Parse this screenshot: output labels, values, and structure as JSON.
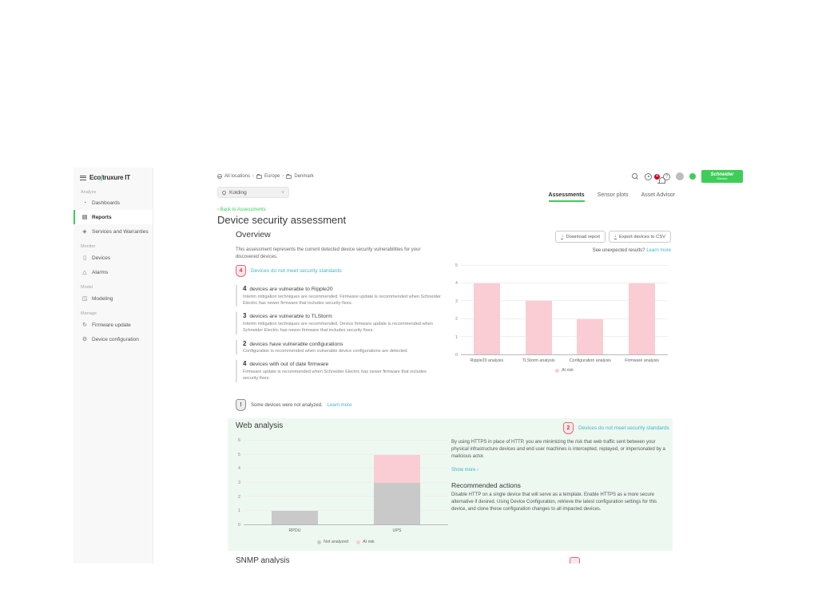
{
  "app_title": "EcoStruxure IT",
  "sidebar": {
    "logo_prefix": "Eco",
    "logo_glyph": "∫",
    "logo_suffix": "truxure IT",
    "sections": [
      {
        "label": "Analyze",
        "items": [
          {
            "label": "Dashboards",
            "icon": "dashboards-icon",
            "glyph": "◔",
            "active": false
          },
          {
            "label": "Reports",
            "icon": "reports-icon",
            "glyph": "▤",
            "active": true
          },
          {
            "label": "Services and Warranties",
            "icon": "services-warranties-icon",
            "glyph": "◈",
            "active": false
          }
        ]
      },
      {
        "label": "Monitor",
        "items": [
          {
            "label": "Devices",
            "icon": "devices-icon",
            "glyph": "▯",
            "active": false
          },
          {
            "label": "Alarms",
            "icon": "alarms-icon",
            "glyph": "△",
            "active": false
          }
        ]
      },
      {
        "label": "Model",
        "items": [
          {
            "label": "Modeling",
            "icon": "modeling-icon",
            "glyph": "◫",
            "active": false
          }
        ]
      },
      {
        "label": "Manage",
        "items": [
          {
            "label": "Firmware update",
            "icon": "firmware-update-icon",
            "glyph": "↻",
            "active": false
          },
          {
            "label": "Device configuration",
            "icon": "device-configuration-icon",
            "glyph": "⚙",
            "active": false
          }
        ]
      }
    ]
  },
  "topbar": {
    "breadcrumb": [
      "All locations",
      "Europe",
      "Denmark"
    ],
    "location_selector": "Kolding",
    "notification_badge": "4",
    "brand_line1": "Schneider",
    "brand_line2": "Electric"
  },
  "tabs": [
    {
      "label": "Assessments",
      "active": true
    },
    {
      "label": "Sensor plots",
      "active": false
    },
    {
      "label": "Asset Advisor",
      "active": false
    }
  ],
  "back_link": "‹ Back to Assessments",
  "page_title": "Device security assessment",
  "overview": {
    "heading": "Overview",
    "description": "This assessment represents the current detected device security vulnerabilities for your discovered devices.",
    "buttons": {
      "download": "Download report",
      "export": "Export devices to CSV"
    },
    "unexpected_text": "See unexpected results?",
    "unexpected_link": "Learn more",
    "risk_badge": {
      "count": "4",
      "label": "Devices do not meet security standards"
    },
    "findings": [
      {
        "count": "4",
        "title": "devices are vulnerable to Ripple20",
        "description": "Interim mitigation techniques are recommended. Firmware update is recommended when Schneider Electric has newer firmware that includes security fixes."
      },
      {
        "count": "3",
        "title": "devices are vulnerable to TLStorm",
        "description": "Interim mitigation techniques are recommended. Device firmware update is recommended when Schneider Electric has newer firmware that includes security fixes."
      },
      {
        "count": "2",
        "title": "devices have vulnerable configurations",
        "description": "Configuration is recommended when vulnerable device configurations are detected."
      },
      {
        "count": "4",
        "title": "devices with out of date firmware",
        "description": "Firmware update is recommended when Schneider Electric has newer firmware that includes security fixes."
      }
    ],
    "not_analyzed_text": "Some devices were not analyzed.",
    "not_analyzed_link": "Learn more"
  },
  "web_analysis": {
    "heading": "Web analysis",
    "risk_badge": {
      "count": "2",
      "label": "Devices do not meet security standards"
    },
    "description": "By using HTTPS in place of HTTP, you are minimizing the risk that web traffic sent between your physical infrastructure devices and end user machines is intercepted, replayed, or impersonated by a malicious actor.",
    "show_more": "Show more ›",
    "recommended_heading": "Recommended actions",
    "recommended_text": "Disable HTTP on a single device that will serve as a template. Enable HTTPS as a more secure alternative if desired. Using Device Configuration, retrieve the latest configuration settings for this device, and clone these configuration changes to all impacted devices."
  },
  "snmp": {
    "heading": "SNMP analysis"
  },
  "chart_data": [
    {
      "type": "bar",
      "title": "Overview — devices at risk per analysis",
      "categories": [
        "Ripple20 analysis",
        "TLStorm analysis",
        "Configuration analysis",
        "Firmware analysis"
      ],
      "series": [
        {
          "name": "At risk",
          "color": "#f9cdd3",
          "values": [
            4,
            3,
            2,
            4
          ]
        }
      ],
      "stacked": false,
      "ylim": [
        0,
        5
      ],
      "yticks": [
        0,
        1,
        2,
        3,
        4,
        5
      ],
      "grid": true,
      "legend_position": "bottom"
    },
    {
      "type": "bar",
      "title": "Web analysis — devices per type",
      "categories": [
        "RPDU",
        "UPS"
      ],
      "series": [
        {
          "name": "Not analyzed",
          "color": "#c9c9c9",
          "values": [
            1,
            3
          ]
        },
        {
          "name": "At risk",
          "color": "#f9cdd3",
          "values": [
            0,
            2
          ]
        }
      ],
      "stacked": true,
      "ylim": [
        0,
        6
      ],
      "yticks": [
        0,
        1,
        2,
        3,
        4,
        5,
        6
      ],
      "grid": true,
      "legend_position": "bottom"
    }
  ],
  "colors": {
    "brand_green": "#3dcd58",
    "link_teal": "#42b4c6",
    "risk_pink": "#f9cdd3",
    "not_analyzed_gray": "#c9c9c9",
    "alert_red": "#d0021b",
    "shield_border": "#e06a76",
    "panel_mint": "#edf8f1"
  }
}
